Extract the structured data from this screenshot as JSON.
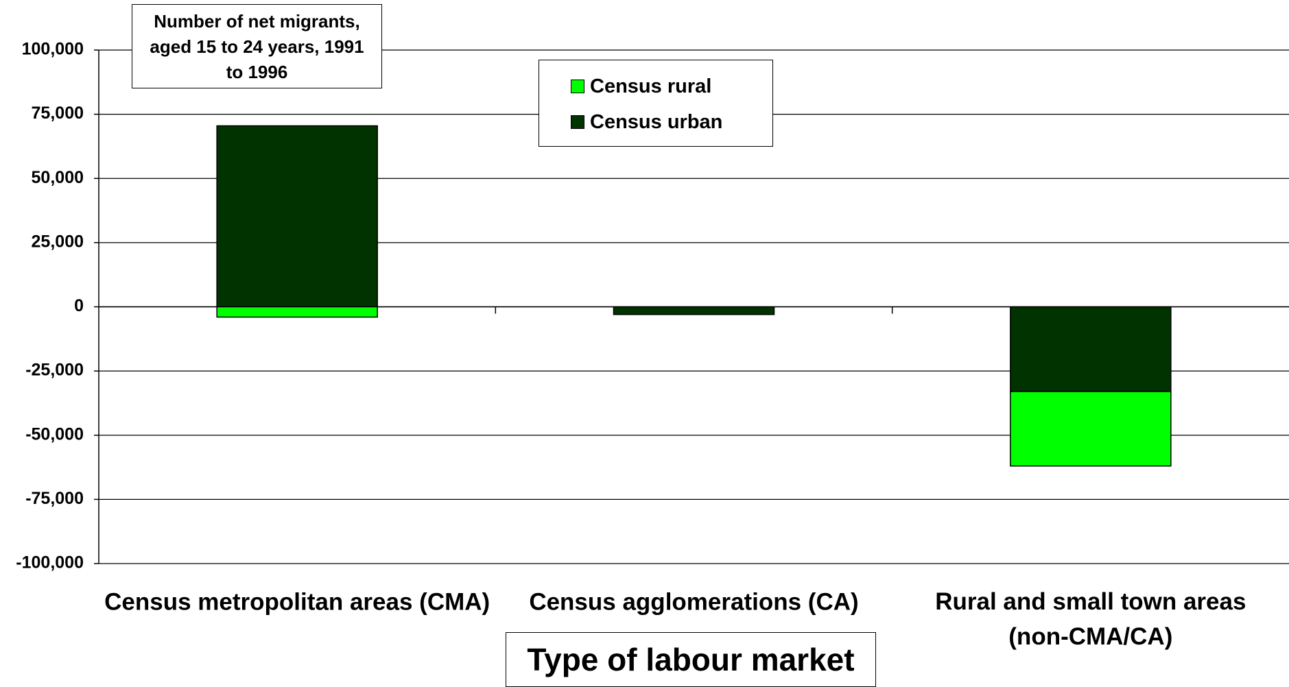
{
  "chart_data": {
    "type": "stacked_bar",
    "title": "Number of net migrants, aged 15 to 24 years, 1991 to 1996",
    "x_label": "Type of labour market",
    "categories": [
      "Census metropolitan areas (CMA)",
      "Census agglomerations (CA)",
      "Rural and small town areas (non-CMA/CA)"
    ],
    "series": [
      {
        "name": "Census rural",
        "color": "#00ff00",
        "values": [
          -4000,
          0,
          -29000
        ]
      },
      {
        "name": "Census urban",
        "color": "#003300",
        "values": [
          70500,
          -3000,
          -33000
        ]
      }
    ],
    "ylim": [
      -100000,
      100000
    ],
    "yticks": [
      {
        "value": -100000,
        "label": "-100,000"
      },
      {
        "value": -75000,
        "label": "-75,000"
      },
      {
        "value": -50000,
        "label": "-50,000"
      },
      {
        "value": -25000,
        "label": "-25,000"
      },
      0,
      {
        "value": 25000,
        "label": "25,000"
      },
      {
        "value": 50000,
        "label": "50,000"
      },
      {
        "value": 75000,
        "label": "75,000"
      },
      {
        "value": 100000,
        "label": "100,000"
      }
    ],
    "grid": true
  }
}
